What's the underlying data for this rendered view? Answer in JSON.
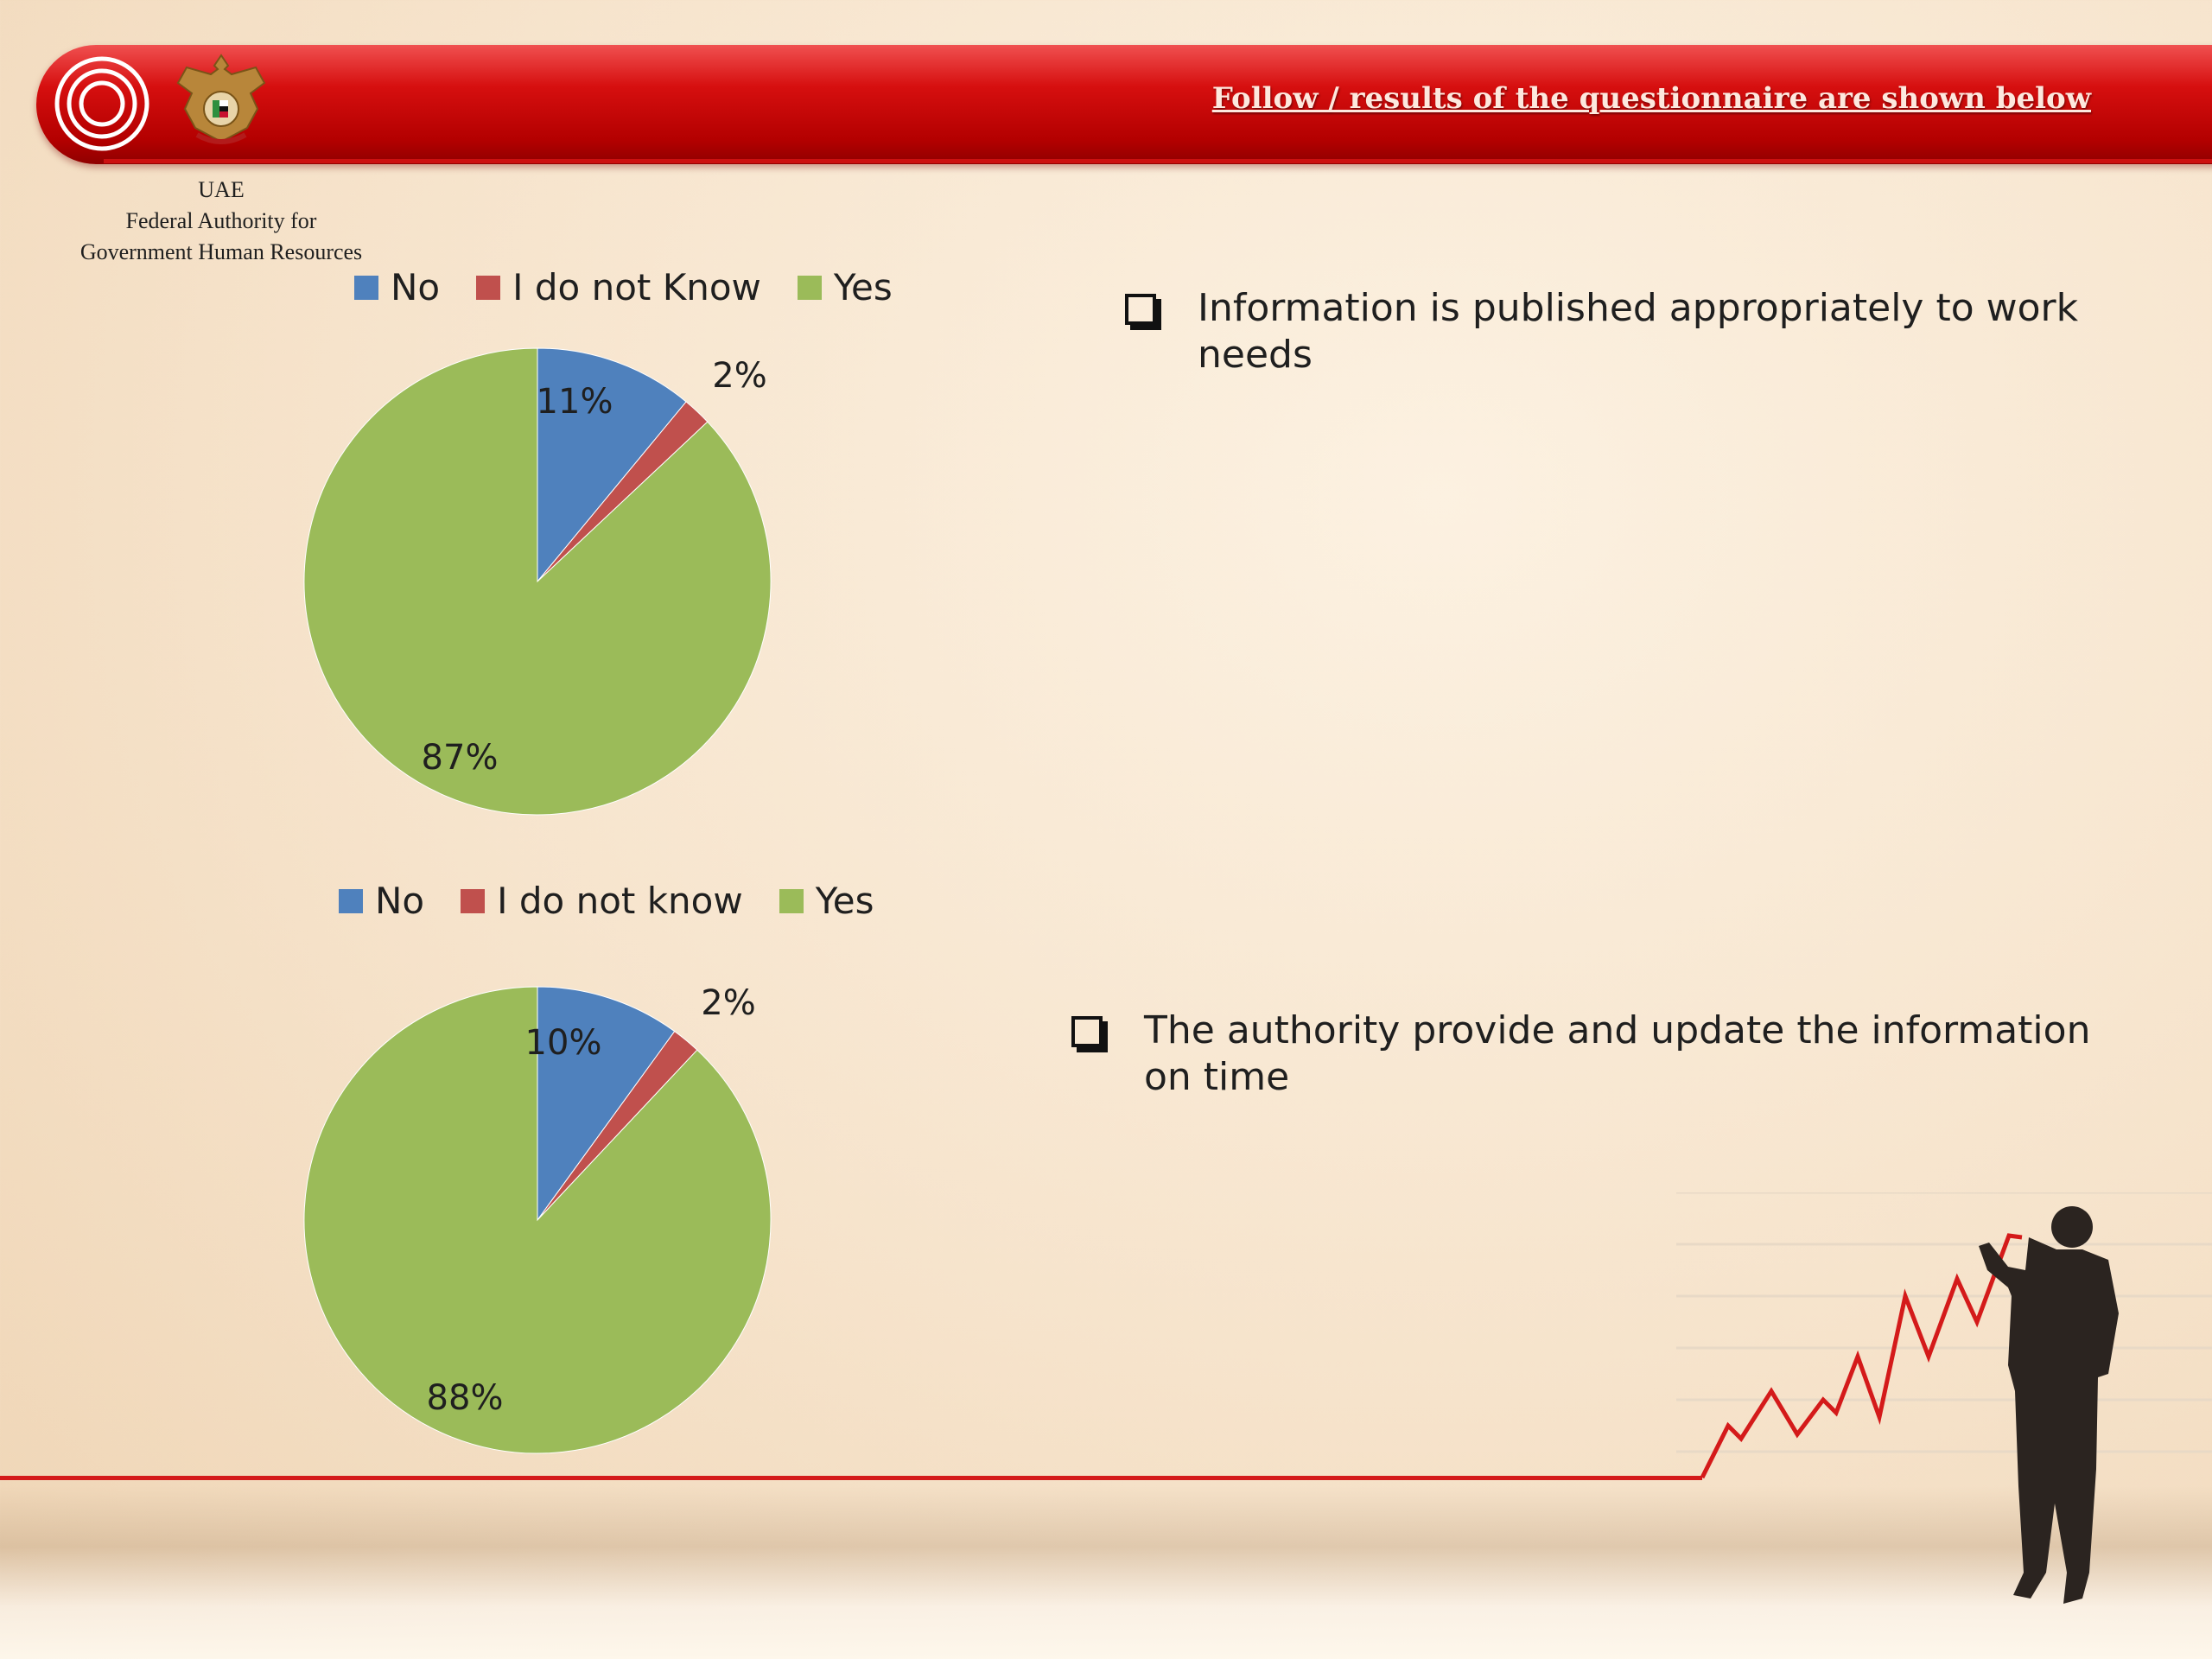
{
  "header": {
    "title": "Follow / results of the questionnaire are shown below"
  },
  "organization": {
    "line1": "UAE",
    "line2": "Federal Authority for",
    "line3": "Government Human Resources"
  },
  "colors": {
    "no": "#4f81bd",
    "dont_know": "#c0504d",
    "yes": "#9bbb59",
    "header_red": "#c80000"
  },
  "icons": {
    "logo": "concentric-circles-logo",
    "emblem": "uae-emblem",
    "checkbox": "checkbox-icon",
    "figure": "businessman-drawing-chart-illustration"
  },
  "questions": [
    {
      "text": "Information is published appropriately to work needs"
    },
    {
      "text": "The authority provide and update the information on time"
    }
  ],
  "chart_data": [
    {
      "type": "pie",
      "title": "",
      "legend_position": "top",
      "labels": [
        "No",
        "I do not Know",
        "Yes"
      ],
      "values": [
        11,
        2,
        87
      ],
      "data_labels": [
        "11%",
        "2%",
        "87%"
      ]
    },
    {
      "type": "pie",
      "title": "",
      "legend_position": "top",
      "labels": [
        "No",
        "I do not know",
        "Yes"
      ],
      "values": [
        10,
        2,
        88
      ],
      "data_labels": [
        "10%",
        "2%",
        "88%"
      ]
    }
  ]
}
